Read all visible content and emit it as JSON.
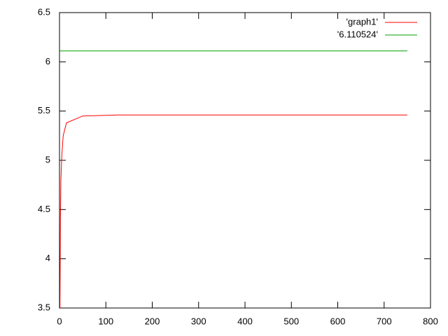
{
  "chart_data": {
    "type": "line",
    "series": [
      {
        "name": "'graph1'",
        "color": "#ff0000",
        "x": [
          1,
          2,
          3,
          5,
          8,
          15,
          50,
          125,
          750
        ],
        "values": [
          3.5,
          4.4,
          4.8,
          5.05,
          5.25,
          5.38,
          5.45,
          5.46,
          5.46
        ]
      },
      {
        "name": "'6.110524'",
        "color": "#00a000",
        "x": [
          1,
          750
        ],
        "values": [
          6.110524,
          6.110524
        ]
      }
    ],
    "xlim": [
      0,
      800
    ],
    "xticks": [
      0,
      100,
      200,
      300,
      400,
      500,
      600,
      700,
      800
    ],
    "ylim": [
      3.5,
      6.5
    ],
    "yticks": [
      3.5,
      4,
      4.5,
      5,
      5.5,
      6,
      6.5
    ],
    "grid": false,
    "legend": "top-right"
  }
}
